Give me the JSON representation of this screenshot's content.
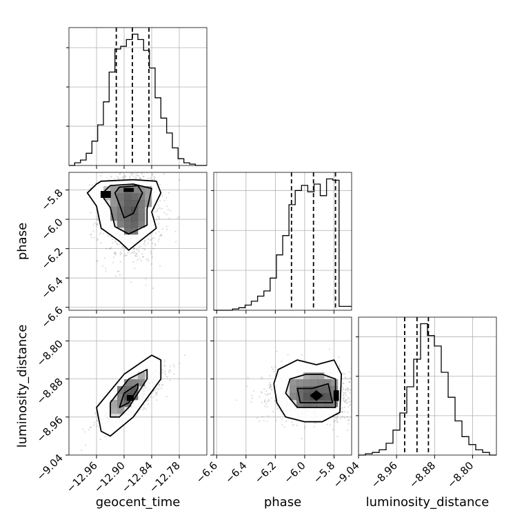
{
  "chart_data": {
    "type": "corner",
    "parameters": [
      "geocent_time",
      "phase",
      "luminosity_distance"
    ],
    "grid": true,
    "ranges": {
      "geocent_time": [
        -13.02,
        -12.72
      ],
      "phase": [
        -6.62,
        -5.68
      ],
      "luminosity_distance": [
        -9.04,
        -8.75
      ]
    },
    "ticks": {
      "geocent_time": [
        "-12.96",
        "-12.90",
        "-12.84",
        "-12.78"
      ],
      "phase": [
        "-6.6",
        "-6.4",
        "-6.2",
        "-6.0",
        "-5.8"
      ],
      "luminosity_distance": [
        "-9.04",
        "-8.96",
        "-8.88",
        "-8.80"
      ]
    },
    "quantiles": {
      "geocent_time": [
        -12.917,
        -12.882,
        -12.846
      ],
      "phase": [
        -6.09,
        -5.94,
        -5.79
      ],
      "luminosity_distance": [
        -8.943,
        -8.917,
        -8.893
      ]
    },
    "histograms": {
      "geocent_time": {
        "bins": [
          -13.02,
          -12.72
        ],
        "counts": [
          0,
          2,
          4,
          9,
          18,
          30,
          47,
          69,
          86,
          88,
          93,
          97,
          93,
          85,
          72,
          50,
          35,
          24,
          13,
          5,
          2,
          1,
          0,
          0
        ]
      },
      "phase": {
        "bins": [
          -6.62,
          -5.68
        ],
        "counts": [
          0,
          0,
          0,
          1,
          2,
          4,
          7,
          11,
          15,
          25,
          43,
          58,
          82,
          93,
          97,
          92,
          98,
          89,
          102,
          101,
          3,
          3
        ]
      },
      "luminosity_distance": {
        "bins": [
          -9.04,
          -8.75
        ],
        "counts": [
          0,
          1,
          2,
          4,
          9,
          19,
          32,
          52,
          73,
          100,
          91,
          83,
          63,
          44,
          26,
          14,
          8,
          4,
          2,
          0
        ]
      }
    },
    "pairs": [
      {
        "x": "geocent_time",
        "y": "phase",
        "mean": [
          -12.885,
          -5.96
        ],
        "std": [
          0.035,
          0.17
        ],
        "corr": 0.0,
        "contours": [
          [
            [
              -12.95,
              -5.74
            ],
            [
              -12.88,
              -5.73
            ],
            [
              -12.83,
              -5.74
            ],
            [
              -12.82,
              -5.82
            ],
            [
              -12.84,
              -5.95
            ],
            [
              -12.83,
              -6.06
            ],
            [
              -12.87,
              -6.16
            ],
            [
              -12.89,
              -6.21
            ],
            [
              -12.91,
              -6.15
            ],
            [
              -12.95,
              -6.06
            ],
            [
              -12.96,
              -5.91
            ],
            [
              -12.98,
              -5.82
            ],
            [
              -12.96,
              -5.76
            ]
          ],
          [
            [
              -12.93,
              -5.77
            ],
            [
              -12.88,
              -5.76
            ],
            [
              -12.84,
              -5.79
            ],
            [
              -12.85,
              -5.93
            ],
            [
              -12.85,
              -6.04
            ],
            [
              -12.89,
              -6.1
            ],
            [
              -12.92,
              -6.05
            ],
            [
              -12.93,
              -5.92
            ],
            [
              -12.95,
              -5.83
            ]
          ],
          [
            [
              -12.91,
              -5.78
            ],
            [
              -12.87,
              -5.77
            ],
            [
              -12.86,
              -5.82
            ],
            [
              -12.88,
              -5.96
            ],
            [
              -12.9,
              -5.99
            ],
            [
              -12.91,
              -5.9
            ],
            [
              -12.92,
              -5.82
            ]
          ],
          [
            [
              -12.9,
              -5.79
            ],
            [
              -12.88,
              -5.79
            ],
            [
              -12.88,
              -5.81
            ],
            [
              -12.9,
              -5.81
            ]
          ],
          [
            [
              -12.95,
              -5.81
            ],
            [
              -12.93,
              -5.81
            ],
            [
              -12.93,
              -5.85
            ],
            [
              -12.95,
              -5.85
            ]
          ]
        ]
      },
      {
        "x": "geocent_time",
        "y": "luminosity_distance",
        "mean": [
          -12.88,
          -8.915
        ],
        "std": [
          0.035,
          0.03
        ],
        "corr": 0.8,
        "contours": [
          [
            [
              -12.95,
              -8.99
            ],
            [
              -12.96,
              -8.94
            ],
            [
              -12.9,
              -8.87
            ],
            [
              -12.84,
              -8.83
            ],
            [
              -12.82,
              -8.84
            ],
            [
              -12.82,
              -8.88
            ],
            [
              -12.88,
              -8.96
            ],
            [
              -12.93,
              -9.0
            ]
          ],
          [
            [
              -12.93,
              -8.96
            ],
            [
              -12.93,
              -8.93
            ],
            [
              -12.89,
              -8.88
            ],
            [
              -12.85,
              -8.86
            ],
            [
              -12.85,
              -8.88
            ],
            [
              -12.89,
              -8.94
            ],
            [
              -12.91,
              -8.96
            ]
          ],
          [
            [
              -12.91,
              -8.94
            ],
            [
              -12.9,
              -8.91
            ],
            [
              -12.87,
              -8.89
            ],
            [
              -12.87,
              -8.9
            ],
            [
              -12.89,
              -8.93
            ]
          ],
          [
            [
              -12.893,
              -8.925
            ],
            [
              -12.88,
              -8.925
            ],
            [
              -12.88,
              -8.915
            ],
            [
              -12.893,
              -8.915
            ]
          ]
        ]
      },
      {
        "x": "phase",
        "y": "luminosity_distance",
        "mean": [
          -5.93,
          -8.915
        ],
        "std": [
          0.17,
          0.03
        ],
        "corr": 0.0,
        "contours": [
          [
            [
              -6.18,
              -8.86
            ],
            [
              -6.05,
              -8.84
            ],
            [
              -5.92,
              -8.85
            ],
            [
              -5.8,
              -8.84
            ],
            [
              -5.75,
              -8.87
            ],
            [
              -5.76,
              -8.95
            ],
            [
              -5.88,
              -8.97
            ],
            [
              -6.0,
              -8.97
            ],
            [
              -6.13,
              -8.96
            ],
            [
              -6.19,
              -8.93
            ],
            [
              -6.21,
              -8.89
            ]
          ],
          [
            [
              -6.1,
              -8.88
            ],
            [
              -5.99,
              -8.87
            ],
            [
              -5.88,
              -8.87
            ],
            [
              -5.79,
              -8.88
            ],
            [
              -5.79,
              -8.94
            ],
            [
              -5.92,
              -8.94
            ],
            [
              -6.05,
              -8.94
            ],
            [
              -6.13,
              -8.91
            ]
          ],
          [
            [
              -6.05,
              -8.9
            ],
            [
              -5.95,
              -8.9
            ],
            [
              -5.84,
              -8.89
            ],
            [
              -5.81,
              -8.93
            ],
            [
              -5.93,
              -8.93
            ],
            [
              -6.03,
              -8.93
            ]
          ],
          [
            [
              -5.96,
              -8.915
            ],
            [
              -5.92,
              -8.905
            ],
            [
              -5.88,
              -8.915
            ],
            [
              -5.92,
              -8.925
            ]
          ],
          [
            [
              -5.8,
              -8.905
            ],
            [
              -5.77,
              -8.905
            ],
            [
              -5.77,
              -8.925
            ],
            [
              -5.8,
              -8.925
            ]
          ]
        ]
      }
    ]
  }
}
